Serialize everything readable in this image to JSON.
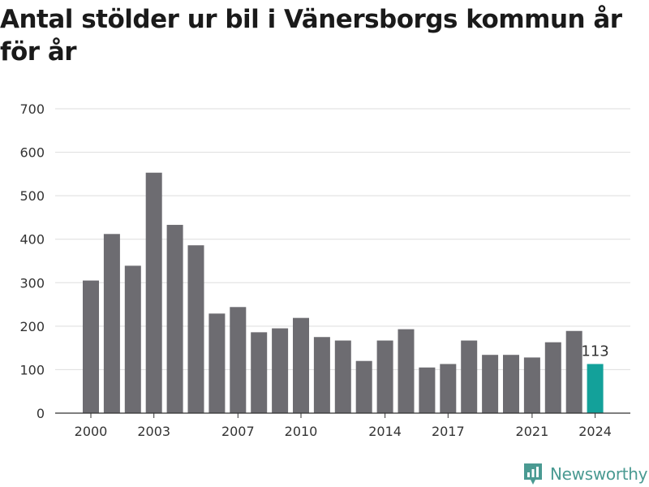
{
  "title": "Antal stölder ur bil i Vänersborgs kommun år för år",
  "brand": {
    "name": "Newsworthy",
    "icon": "newsworthy-logo-icon",
    "color": "#4a9a92"
  },
  "chart_data": {
    "type": "bar",
    "title": "Antal stölder ur bil i Vänersborgs kommun år för år",
    "xlabel": "",
    "ylabel": "",
    "categories": [
      "2000",
      "2001",
      "2002",
      "2003",
      "2004",
      "2005",
      "2006",
      "2007",
      "2008",
      "2009",
      "2010",
      "2011",
      "2012",
      "2013",
      "2014",
      "2015",
      "2016",
      "2017",
      "2018",
      "2019",
      "2020",
      "2021",
      "2022",
      "2023",
      "2024"
    ],
    "values": [
      305,
      412,
      339,
      553,
      433,
      386,
      229,
      244,
      186,
      195,
      219,
      175,
      167,
      120,
      167,
      193,
      105,
      113,
      167,
      134,
      134,
      128,
      163,
      189,
      113
    ],
    "x_tick_labels": [
      "2000",
      "2003",
      "2007",
      "2010",
      "2014",
      "2017",
      "2021",
      "2024"
    ],
    "y_ticks": [
      0,
      100,
      200,
      300,
      400,
      500,
      600,
      700
    ],
    "ylim": [
      0,
      700
    ],
    "grid": true,
    "bar_color": "#6d6c71",
    "highlight_color": "#13a19a",
    "highlight_category": "2024",
    "data_labels": [
      {
        "category": "2024",
        "text": "113"
      }
    ]
  }
}
